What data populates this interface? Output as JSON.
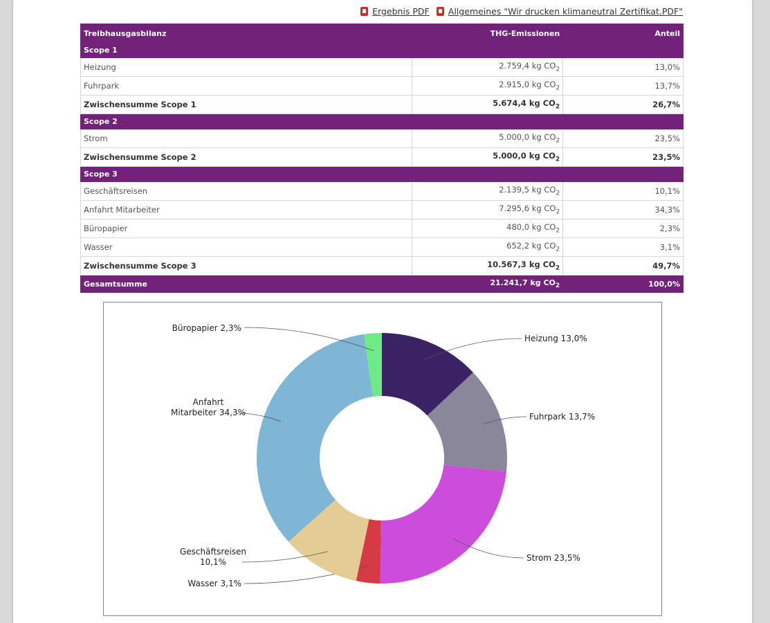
{
  "links": {
    "result_pdf": "Ergebnis PDF",
    "certificate_pdf": "Allgemeines \"Wir drucken klimaneutral Zertifikat.PDF\""
  },
  "table": {
    "headers": [
      "Treibhausgasbilanz",
      "THG-Emissionen",
      "Anteil"
    ],
    "scope1": {
      "title": "Scope 1",
      "rows": [
        {
          "name": "Heizung",
          "value": "2.759,4 kg CO",
          "share": "13,0%"
        },
        {
          "name": "Fuhrpark",
          "value": "2.915,0 kg CO",
          "share": "13,7%"
        }
      ],
      "subtotal": {
        "name": "Zwischensumme Scope 1",
        "value": "5.674,4 kg CO",
        "share": "26,7%"
      }
    },
    "scope2": {
      "title": "Scope 2",
      "rows": [
        {
          "name": "Strom",
          "value": "5.000,0 kg CO",
          "share": "23,5%"
        }
      ],
      "subtotal": {
        "name": "Zwischensumme Scope 2",
        "value": "5.000,0 kg CO",
        "share": "23,5%"
      }
    },
    "scope3": {
      "title": "Scope 3",
      "rows": [
        {
          "name": "Geschäftsreisen",
          "value": "2.139,5 kg CO",
          "share": "10,1%"
        },
        {
          "name": "Anfahrt Mitarbeiter",
          "value": "7.295,6 kg CO",
          "share": "34,3%"
        },
        {
          "name": "Büropapier",
          "value": "480,0 kg CO",
          "share": "2,3%"
        },
        {
          "name": "Wasser",
          "value": "652,2 kg CO",
          "share": "3,1%"
        }
      ],
      "subtotal": {
        "name": "Zwischensumme Scope 3",
        "value": "10.567,3 kg CO",
        "share": "49,7%"
      }
    },
    "total": {
      "name": "Gesamtsumme",
      "value": "21.241,7 kg CO",
      "share": "100,0%"
    },
    "co2_subscript": "2"
  },
  "chart_data": {
    "type": "pie",
    "variant": "donut",
    "categories": [
      "Heizung",
      "Fuhrpark",
      "Strom",
      "Wasser",
      "Geschäftsreisen",
      "Anfahrt Mitarbeiter",
      "Büropapier"
    ],
    "values": [
      13.0,
      13.7,
      23.5,
      3.1,
      10.1,
      34.3,
      2.3
    ],
    "labels": [
      [
        "Heizung  13,0%"
      ],
      [
        "Fuhrpark  13,7%"
      ],
      [
        "Strom  23,5%"
      ],
      [
        "Wasser  3,1%"
      ],
      [
        "Geschäftsreisen",
        "10,1%"
      ],
      [
        "Anfahrt",
        "Mitarbeiter  34,3%"
      ],
      [
        "Büropapier  2,3%"
      ]
    ],
    "colors": [
      "#3b2264",
      "#8b879b",
      "#cc4ddc",
      "#d63a45",
      "#e4cd95",
      "#7fb5d5",
      "#6ceb87"
    ]
  },
  "colors": {
    "accent": "#732279"
  }
}
